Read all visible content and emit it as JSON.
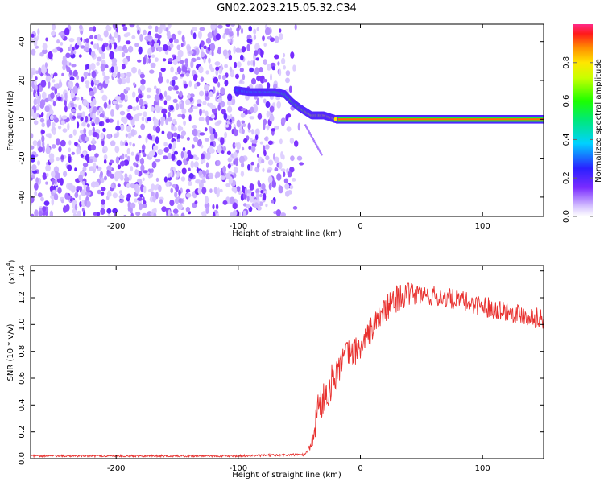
{
  "title": "GN02.2023.215.05.32.C34",
  "chart_data": [
    {
      "type": "heatmap",
      "xlabel": "Height of straight line (km)",
      "ylabel": "Frequency (Hz)",
      "xlim": [
        -270,
        150
      ],
      "ylim": [
        -50,
        49
      ],
      "xticks": [
        -200,
        -100,
        0,
        100
      ],
      "xtick_labels": [
        "-200",
        "-100",
        "0",
        "100"
      ],
      "yticks": [
        -40,
        -20,
        0,
        20,
        40
      ],
      "ytick_labels": [
        "-40",
        "-20",
        "0",
        "20",
        "40"
      ],
      "colorbar": {
        "label": "Normalized spectral amplitude",
        "range": [
          0,
          1
        ],
        "ticks": [
          0,
          0.2,
          0.4,
          0.6,
          0.8
        ],
        "tick_labels": [
          "0.0",
          "0.2",
          "0.4",
          "0.6",
          "0.8"
        ]
      },
      "noise_region_x": [
        -270,
        -55
      ],
      "signal_track": {
        "x": [
          -102,
          -90,
          -80,
          -70,
          -62,
          -56,
          -50,
          -45,
          -40,
          -35,
          -30,
          -25,
          -20,
          0,
          50,
          100,
          150
        ],
        "y": [
          15,
          14,
          14,
          14,
          13,
          9,
          6,
          4,
          2,
          2,
          2,
          1,
          0,
          0,
          0,
          0,
          0
        ],
        "peak_amplitude": 0.9
      },
      "grid": false
    },
    {
      "type": "line",
      "xlabel": "Height of straight line (km)",
      "ylabel": "SNR (10 * v/v)",
      "yscale_label": "(x10",
      "yscale_exponent": "4",
      "xlim": [
        -270,
        150
      ],
      "ylim": [
        0,
        14400
      ],
      "xticks": [
        -200,
        -100,
        0,
        100
      ],
      "xtick_labels": [
        "-200",
        "-100",
        "0",
        "100"
      ],
      "yticks": [
        0,
        2000,
        4000,
        6000,
        8000,
        10000,
        12000,
        14000
      ],
      "ytick_labels": [
        "0.0",
        "0.2",
        "0.4",
        "0.6",
        "0.8",
        "1.0",
        "1.2",
        "1.4"
      ],
      "series": [
        {
          "color": "#e8302e",
          "x": [
            -270,
            -200,
            -100,
            -45,
            -40,
            -37,
            -35,
            -30,
            -25,
            -20,
            -15,
            -10,
            -5,
            0,
            5,
            10,
            15,
            20,
            25,
            30,
            35,
            40,
            45,
            50,
            60,
            70,
            80,
            90,
            100,
            110,
            120,
            130,
            140,
            150
          ],
          "y": [
            200,
            200,
            200,
            300,
            1000,
            2500,
            3700,
            4500,
            5400,
            6500,
            7300,
            7800,
            8000,
            8300,
            9000,
            9800,
            10500,
            11000,
            11500,
            12000,
            12100,
            12200,
            12300,
            12200,
            12100,
            12000,
            11800,
            11600,
            11400,
            11200,
            11000,
            10800,
            10600,
            10400
          ],
          "noise": [
            60,
            60,
            60,
            80,
            250,
            900,
            1100,
            1100,
            1000,
            1000,
            900,
            900,
            800,
            800,
            800,
            800,
            800,
            800,
            800,
            800,
            700,
            700,
            700,
            600,
            600,
            600,
            600,
            600,
            600,
            600,
            600,
            600,
            600,
            600
          ]
        }
      ],
      "grid": false
    }
  ]
}
